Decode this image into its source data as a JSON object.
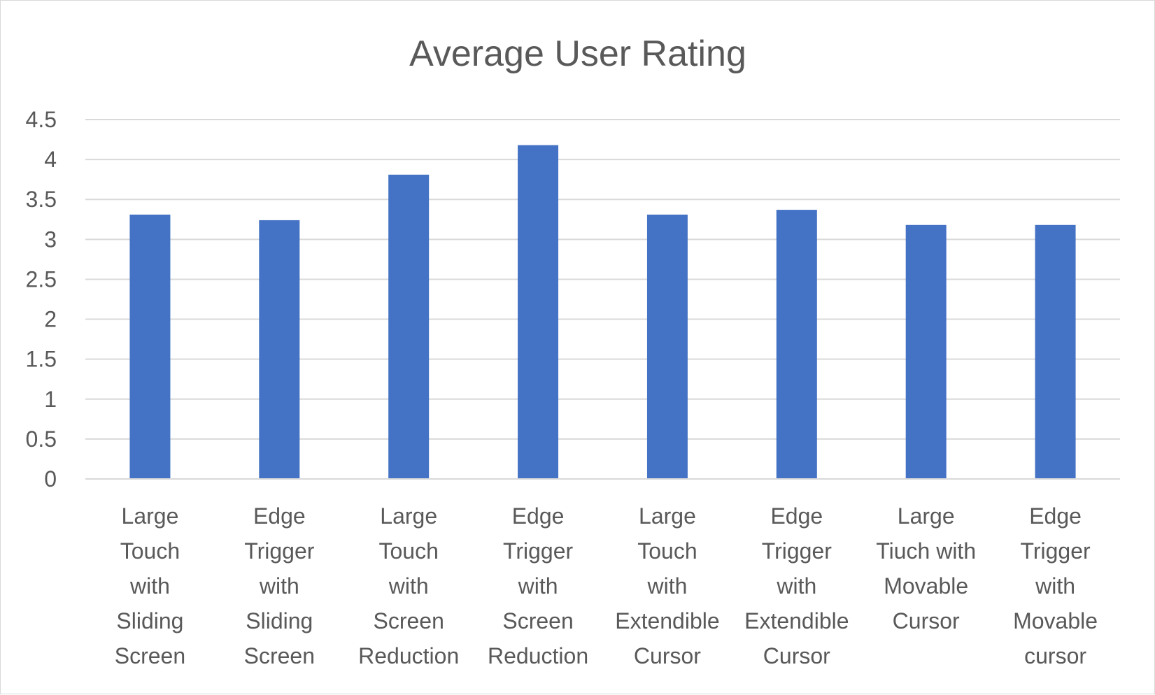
{
  "chart_data": {
    "type": "bar",
    "title": "Average User Rating",
    "categories": [
      [
        "Large",
        "Touch",
        "with",
        "Sliding",
        "Screen"
      ],
      [
        "Edge",
        "Trigger",
        "with",
        "Sliding",
        "Screen"
      ],
      [
        "Large",
        "Touch",
        "with",
        "Screen",
        "Reduction"
      ],
      [
        "Edge",
        "Trigger",
        "with",
        "Screen",
        "Reduction"
      ],
      [
        "Large",
        "Touch",
        "with",
        "Extendible",
        "Cursor"
      ],
      [
        "Edge",
        "Trigger",
        "with",
        "Extendible",
        "Cursor"
      ],
      [
        "Large",
        "Tiuch with",
        "Movable",
        "Cursor"
      ],
      [
        "Edge",
        "Trigger",
        "with",
        "Movable",
        "cursor"
      ]
    ],
    "values": [
      3.31,
      3.24,
      3.81,
      4.18,
      3.31,
      3.37,
      3.18,
      3.18
    ],
    "ylim": [
      0,
      4.5
    ],
    "yticks": [
      "0",
      "0.5",
      "1",
      "1.5",
      "2",
      "2.5",
      "3",
      "3.5",
      "4",
      "4.5"
    ],
    "grid": true,
    "bar_color": "#4472c4"
  }
}
